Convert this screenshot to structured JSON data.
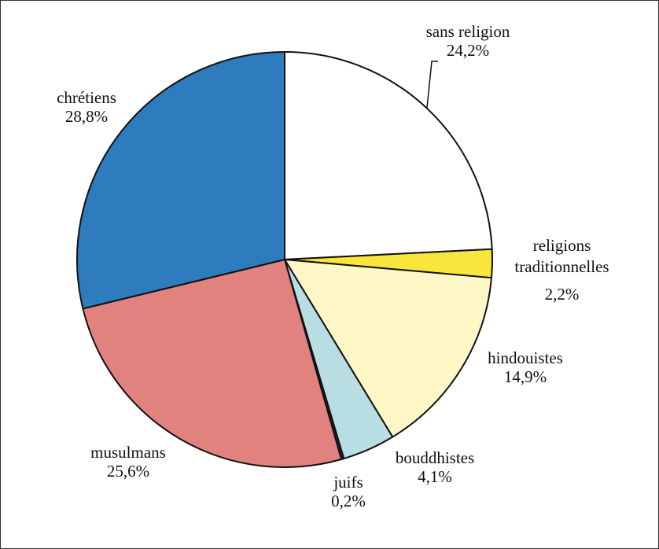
{
  "chart_data": {
    "type": "pie",
    "start_angle_deg": 0,
    "direction": "clockwise",
    "slices": [
      {
        "label": "sans religion",
        "value": 24.2,
        "value_text": "24,2%",
        "color": "#ffffff"
      },
      {
        "label": "religions traditionnelles",
        "value": 2.2,
        "value_text": "2,2%",
        "color": "#f8e63c"
      },
      {
        "label": "hindouistes",
        "value": 14.9,
        "value_text": "14,9%",
        "color": "#fef7c6"
      },
      {
        "label": "bouddhistes",
        "value": 4.1,
        "value_text": "4,1%",
        "color": "#b8dde2"
      },
      {
        "label": "juifs",
        "value": 0.2,
        "value_text": "0,2%",
        "color": "#1c2a55"
      },
      {
        "label": "musulmans",
        "value": 25.6,
        "value_text": "25,6%",
        "color": "#e2827e"
      },
      {
        "label": "chrétiens",
        "value": 28.8,
        "value_text": "28,8%",
        "color": "#2e7bbd"
      }
    ]
  }
}
